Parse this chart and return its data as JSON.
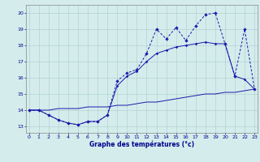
{
  "xlabel": "Graphe des températures (°c)",
  "bg_color": "#d4ecec",
  "grid_color": "#aacccc",
  "line_color": "#1a1aaa",
  "x_ticks": [
    0,
    1,
    2,
    3,
    4,
    5,
    6,
    7,
    8,
    9,
    10,
    11,
    12,
    13,
    14,
    15,
    16,
    17,
    18,
    19,
    20,
    21,
    22,
    23
  ],
  "y_ticks": [
    13,
    14,
    15,
    16,
    17,
    18,
    19,
    20
  ],
  "xlim": [
    -0.3,
    23.3
  ],
  "ylim": [
    12.6,
    20.5
  ],
  "series1_x": [
    0,
    1,
    2,
    3,
    4,
    5,
    6,
    7,
    8,
    9,
    10,
    11,
    12,
    13,
    14,
    15,
    16,
    17,
    18,
    19,
    20,
    21,
    22,
    23
  ],
  "series1_y": [
    14.0,
    14.0,
    13.7,
    13.4,
    13.2,
    13.1,
    13.3,
    13.3,
    13.7,
    15.8,
    16.3,
    16.5,
    17.5,
    19.0,
    18.4,
    19.1,
    18.3,
    19.2,
    19.9,
    20.0,
    18.1,
    16.1,
    19.0,
    15.3
  ],
  "series2_x": [
    0,
    1,
    2,
    3,
    4,
    5,
    6,
    7,
    8,
    9,
    10,
    11,
    12,
    13,
    14,
    15,
    16,
    17,
    18,
    19,
    20,
    21,
    22,
    23
  ],
  "series2_y": [
    14.0,
    14.0,
    13.7,
    13.4,
    13.2,
    13.1,
    13.3,
    13.3,
    13.7,
    15.5,
    16.1,
    16.4,
    17.0,
    17.5,
    17.7,
    17.9,
    18.0,
    18.1,
    18.2,
    18.1,
    18.1,
    16.1,
    15.9,
    15.3
  ],
  "series3_x": [
    0,
    1,
    2,
    3,
    4,
    5,
    6,
    7,
    8,
    9,
    10,
    11,
    12,
    13,
    14,
    15,
    16,
    17,
    18,
    19,
    20,
    21,
    22,
    23
  ],
  "series3_y": [
    14.0,
    14.0,
    14.0,
    14.1,
    14.1,
    14.1,
    14.2,
    14.2,
    14.2,
    14.3,
    14.3,
    14.4,
    14.5,
    14.5,
    14.6,
    14.7,
    14.8,
    14.9,
    15.0,
    15.0,
    15.1,
    15.1,
    15.2,
    15.3
  ]
}
